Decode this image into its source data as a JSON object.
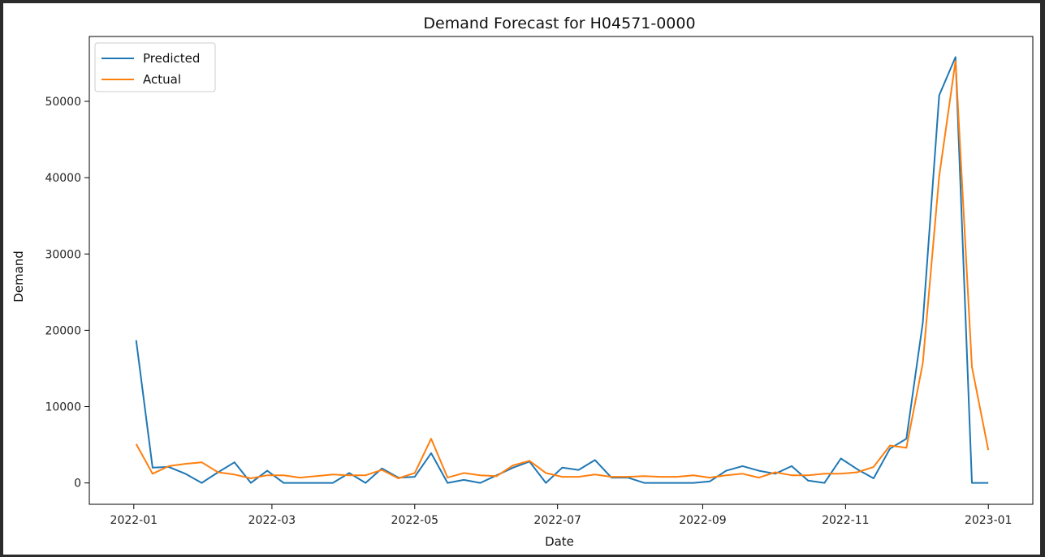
{
  "chart_data": {
    "type": "line",
    "title": "Demand Forecast for H04571-0000",
    "xlabel": "Date",
    "ylabel": "Demand",
    "x_ticks": [
      "2022-01",
      "2022-03",
      "2022-05",
      "2022-07",
      "2022-09",
      "2022-11",
      "2023-01"
    ],
    "y_ticks": [
      0,
      10000,
      20000,
      30000,
      40000,
      50000
    ],
    "xlim": [
      "2021-12-13",
      "2023-01-20"
    ],
    "ylim": [
      -2800,
      58500
    ],
    "grid": false,
    "legend_position": "top-left",
    "x": [
      "2022-01-02",
      "2022-01-09",
      "2022-01-16",
      "2022-01-23",
      "2022-01-30",
      "2022-02-06",
      "2022-02-13",
      "2022-02-20",
      "2022-02-27",
      "2022-03-06",
      "2022-03-13",
      "2022-03-20",
      "2022-03-27",
      "2022-04-03",
      "2022-04-10",
      "2022-04-17",
      "2022-04-24",
      "2022-05-01",
      "2022-05-08",
      "2022-05-15",
      "2022-05-22",
      "2022-05-29",
      "2022-06-05",
      "2022-06-12",
      "2022-06-19",
      "2022-06-26",
      "2022-07-03",
      "2022-07-10",
      "2022-07-17",
      "2022-07-24",
      "2022-07-31",
      "2022-08-07",
      "2022-08-14",
      "2022-08-21",
      "2022-08-28",
      "2022-09-04",
      "2022-09-11",
      "2022-09-18",
      "2022-09-25",
      "2022-10-02",
      "2022-10-09",
      "2022-10-16",
      "2022-10-23",
      "2022-10-30",
      "2022-11-06",
      "2022-11-13",
      "2022-11-20",
      "2022-11-27",
      "2022-12-04",
      "2022-12-11",
      "2022-12-18",
      "2022-12-25",
      "2023-01-01"
    ],
    "series": [
      {
        "name": "Predicted",
        "color": "#1f77b4",
        "values": [
          18700,
          2000,
          2100,
          1200,
          0,
          1400,
          2700,
          0,
          1600,
          0,
          0,
          0,
          0,
          1300,
          0,
          1900,
          700,
          800,
          3900,
          0,
          400,
          0,
          1000,
          2000,
          2800,
          0,
          2000,
          1700,
          3000,
          700,
          700,
          0,
          0,
          0,
          0,
          200,
          1600,
          2200,
          1600,
          1200,
          2200,
          300,
          0,
          3200,
          1800,
          600,
          4500,
          5800,
          21000,
          50800,
          55800,
          0,
          0
        ]
      },
      {
        "name": "Actual",
        "color": "#ff7f0e",
        "values": [
          5100,
          1200,
          2200,
          2500,
          2700,
          1400,
          1100,
          600,
          1000,
          1000,
          700,
          900,
          1100,
          1000,
          1000,
          1700,
          600,
          1300,
          5800,
          700,
          1300,
          1000,
          900,
          2300,
          2900,
          1300,
          800,
          800,
          1100,
          800,
          800,
          900,
          800,
          800,
          1000,
          700,
          1000,
          1200,
          700,
          1400,
          1000,
          1000,
          1200,
          1200,
          1400,
          2100,
          4900,
          4600,
          15700,
          40200,
          55300,
          15200,
          4300
        ]
      }
    ]
  }
}
